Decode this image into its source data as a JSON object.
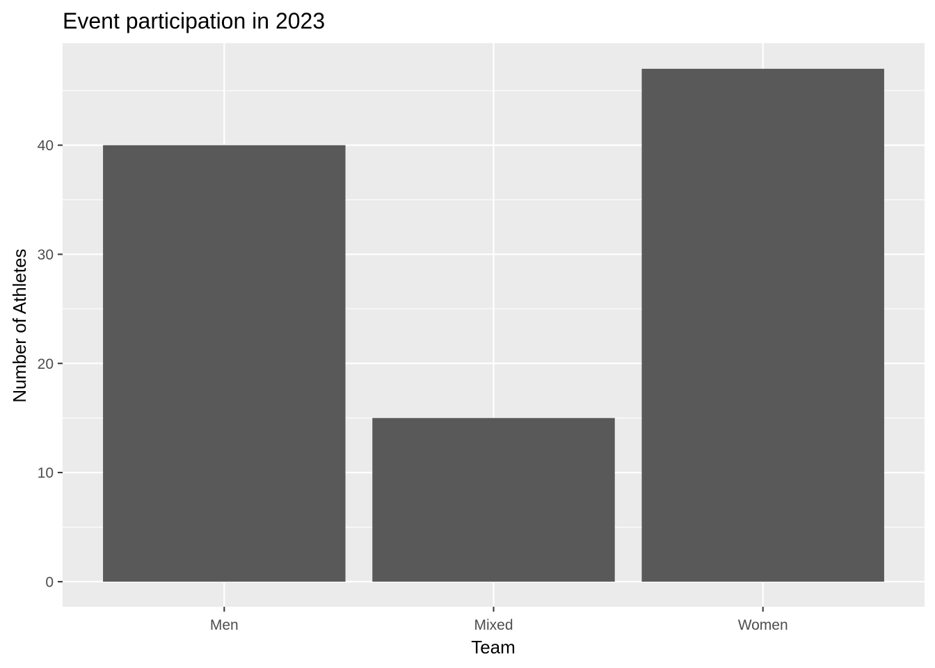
{
  "chart_data": {
    "type": "bar",
    "title": "Event participation in 2023",
    "xlabel": "Team",
    "ylabel": "Number of Athletes",
    "categories": [
      "Men",
      "Mixed",
      "Women"
    ],
    "values": [
      40,
      15,
      47
    ],
    "ylim": [
      -2.3,
      49.35
    ],
    "yticks": [
      0,
      10,
      20,
      30,
      40
    ],
    "grid": true,
    "legend": "none",
    "colors": {
      "bar": "#595959",
      "panel": "#ebebeb",
      "grid": "#ffffff",
      "tick_text": "#4d4d4d",
      "text": "#000000"
    }
  }
}
